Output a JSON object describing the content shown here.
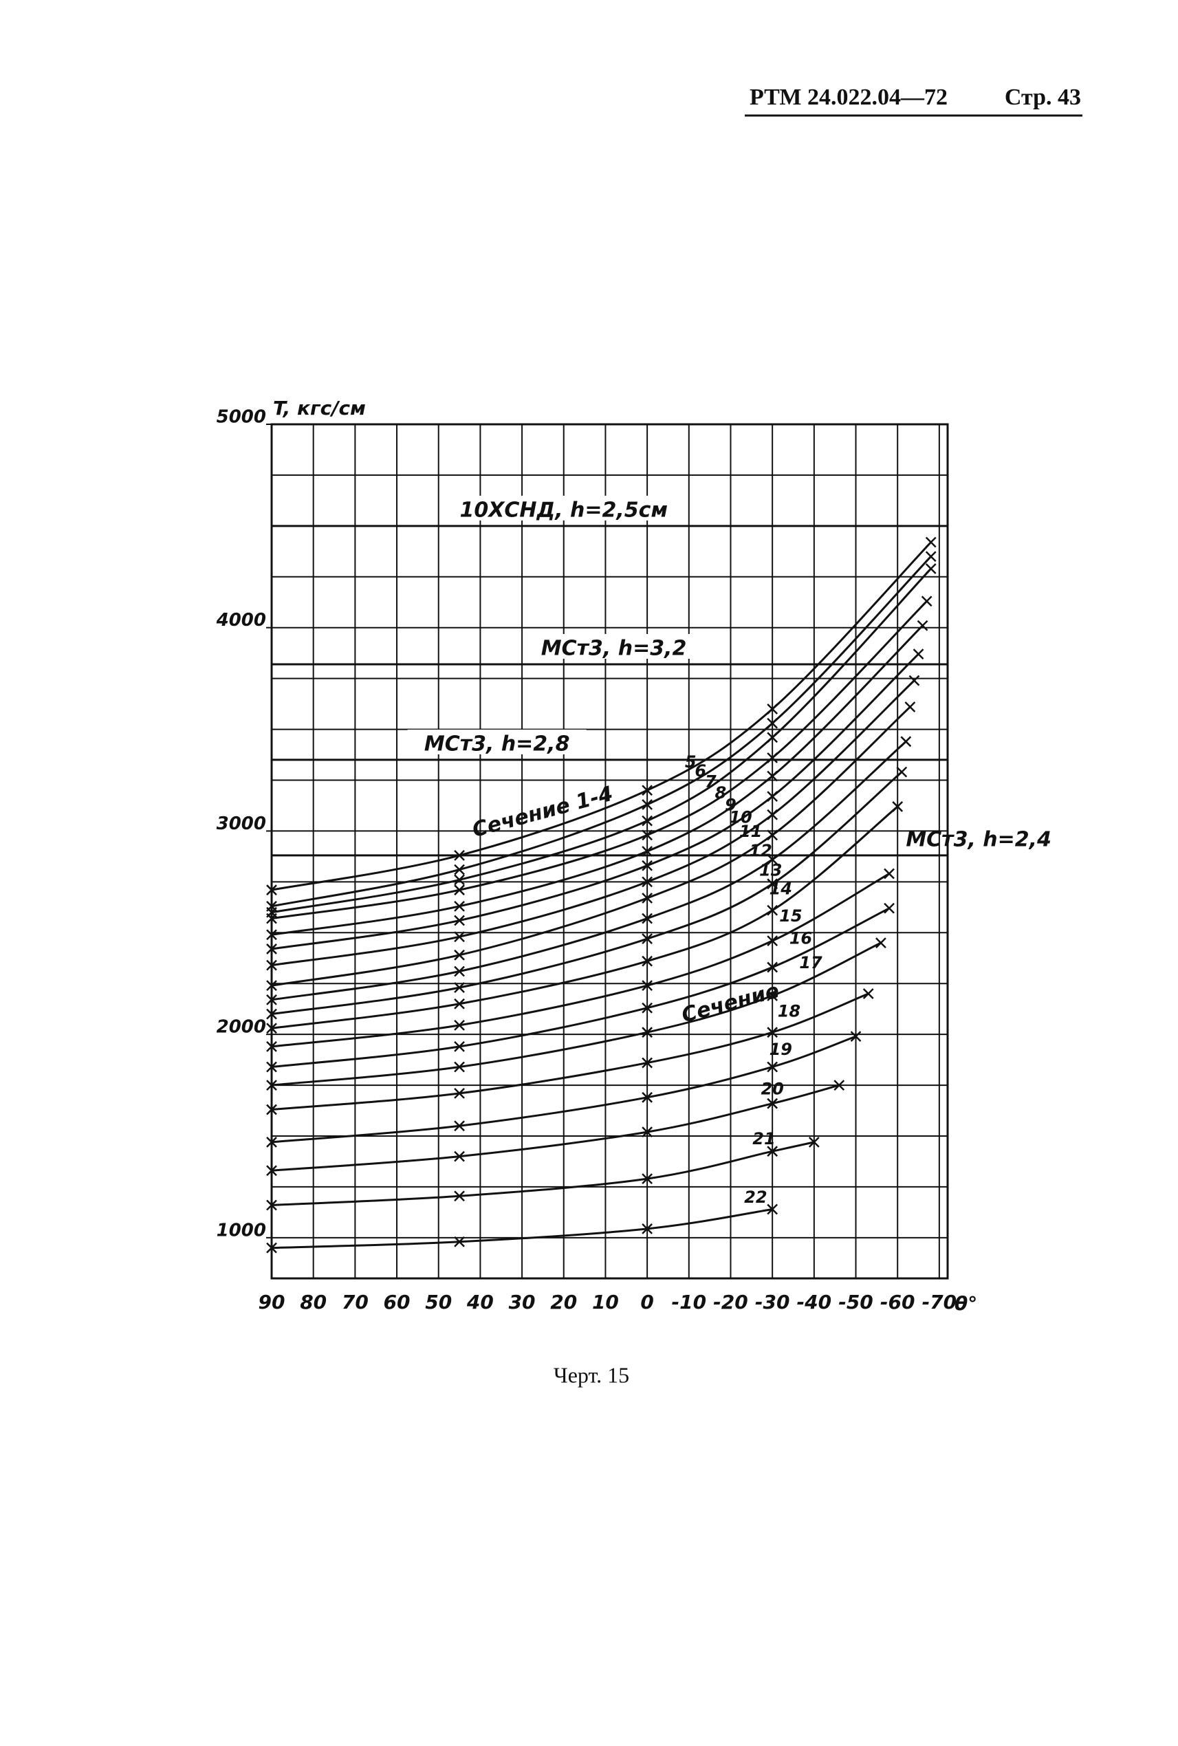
{
  "header": {
    "document": "РТМ 24.022.04—72",
    "page": "Стр. 43"
  },
  "chart_data": {
    "type": "line",
    "y_label": "T, кгс/см",
    "x_label": "θ°",
    "xlim": [
      90,
      -72
    ],
    "ylim": [
      800,
      5000
    ],
    "xticks": [
      90,
      80,
      70,
      60,
      50,
      40,
      30,
      20,
      10,
      0,
      -10,
      -20,
      -30,
      -40,
      -50,
      -60,
      -70
    ],
    "yticks": [
      1000,
      2000,
      3000,
      4000,
      5000
    ],
    "ygrid": [
      1000,
      1250,
      1500,
      1750,
      2000,
      2250,
      2500,
      2750,
      3000,
      3250,
      3500,
      3750,
      4000,
      4250,
      4500,
      4750,
      5000
    ],
    "grid": true,
    "color": "#111",
    "section_label": "Сечение",
    "reference_lines": [
      {
        "label": "10ХСНД, h=2,5см",
        "value": 4500
      },
      {
        "label": "МСт3, h=3,2",
        "value": 3820
      },
      {
        "label": "МСт3, h=2,8",
        "value": 3350
      },
      {
        "label": "МСт3, h=2,4",
        "value": 2880
      }
    ],
    "series": [
      {
        "name": "Сечение 1-4",
        "x": [
          90,
          45,
          0,
          -30,
          -68
        ],
        "values": [
          2710,
          2880,
          3200,
          3600,
          4420
        ]
      },
      {
        "name": "5",
        "x": [
          90,
          45,
          0,
          -30,
          -68
        ],
        "values": [
          2630,
          2810,
          3130,
          3530,
          4350
        ]
      },
      {
        "name": "6",
        "x": [
          90,
          45,
          0,
          -30,
          -68
        ],
        "values": [
          2600,
          2760,
          3050,
          3460,
          4290
        ]
      },
      {
        "name": "7",
        "x": [
          90,
          45,
          0,
          -30,
          -67
        ],
        "values": [
          2570,
          2710,
          2980,
          3360,
          4130
        ]
      },
      {
        "name": "8",
        "x": [
          90,
          45,
          0,
          -30,
          -66
        ],
        "values": [
          2490,
          2630,
          2900,
          3270,
          4010
        ]
      },
      {
        "name": "9",
        "x": [
          90,
          45,
          0,
          -30,
          -65
        ],
        "values": [
          2420,
          2560,
          2830,
          3170,
          3870
        ]
      },
      {
        "name": "10",
        "x": [
          90,
          45,
          0,
          -30,
          -64
        ],
        "values": [
          2340,
          2480,
          2750,
          3080,
          3740
        ]
      },
      {
        "name": "11",
        "x": [
          90,
          45,
          0,
          -30,
          -63
        ],
        "values": [
          2240,
          2390,
          2670,
          2980,
          3610
        ]
      },
      {
        "name": "12",
        "x": [
          90,
          45,
          0,
          -30,
          -62
        ],
        "values": [
          2170,
          2310,
          2570,
          2860,
          3440
        ]
      },
      {
        "name": "13",
        "x": [
          90,
          45,
          0,
          -30,
          -61
        ],
        "values": [
          2100,
          2230,
          2470,
          2740,
          3290
        ]
      },
      {
        "name": "14",
        "x": [
          90,
          45,
          0,
          -30,
          -60
        ],
        "values": [
          2030,
          2150,
          2360,
          2610,
          3120
        ]
      },
      {
        "name": "15",
        "x": [
          90,
          45,
          0,
          -30,
          -58
        ],
        "values": [
          1940,
          2045,
          2240,
          2460,
          2790
        ]
      },
      {
        "name": "16",
        "x": [
          90,
          45,
          0,
          -30,
          -58
        ],
        "values": [
          1840,
          1940,
          2130,
          2330,
          2620
        ]
      },
      {
        "name": "17",
        "x": [
          90,
          45,
          0,
          -30,
          -56
        ],
        "values": [
          1750,
          1840,
          2010,
          2190,
          2450
        ]
      },
      {
        "name": "18",
        "x": [
          90,
          45,
          0,
          -30,
          -53
        ],
        "values": [
          1630,
          1710,
          1860,
          2010,
          2200
        ]
      },
      {
        "name": "19",
        "x": [
          90,
          45,
          0,
          -30,
          -50
        ],
        "values": [
          1470,
          1550,
          1690,
          1840,
          1990
        ]
      },
      {
        "name": "20",
        "x": [
          90,
          45,
          0,
          -30,
          -46
        ],
        "values": [
          1330,
          1400,
          1520,
          1660,
          1750
        ]
      },
      {
        "name": "21",
        "x": [
          90,
          45,
          0,
          -30,
          -40
        ],
        "values": [
          1160,
          1205,
          1290,
          1425,
          1470
        ]
      },
      {
        "name": "22",
        "x": [
          90,
          45,
          0,
          -30
        ],
        "values": [
          950,
          980,
          1044,
          1140
        ]
      }
    ]
  },
  "caption": "Черт. 15"
}
